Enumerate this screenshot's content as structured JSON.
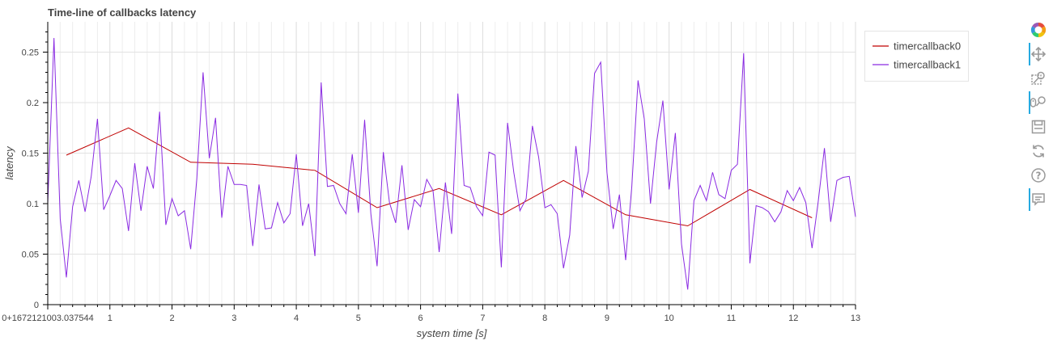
{
  "chart_data": {
    "type": "line",
    "title": "Time-line of callbacks latency",
    "xlabel": "system time [s]",
    "ylabel": "latency",
    "xlim": [
      0,
      13
    ],
    "ylim": [
      0,
      0.28
    ],
    "x_origin_label": "0+1672121003.037544",
    "x_ticks": [
      1,
      2,
      3,
      4,
      5,
      6,
      7,
      8,
      9,
      10,
      11,
      12,
      13
    ],
    "y_ticks": [
      0,
      0.05,
      0.1,
      0.15,
      0.2,
      0.25
    ],
    "y_tick_labels": [
      "0",
      "0.05",
      "0.1",
      "0.15",
      "0.2",
      "0.25"
    ],
    "grid": true,
    "legend_position": "top-right",
    "series": [
      {
        "name": "timercallback0",
        "color": "#c00000",
        "x": [
          0.3,
          1.3,
          2.3,
          3.3,
          4.3,
          5.3,
          6.3,
          7.3,
          8.3,
          9.3,
          10.3,
          11.3,
          12.3
        ],
        "y": [
          0.148,
          0.175,
          0.141,
          0.139,
          0.133,
          0.096,
          0.115,
          0.089,
          0.123,
          0.089,
          0.078,
          0.114,
          0.086
        ]
      },
      {
        "name": "timercallback1",
        "color": "#8a2be2",
        "x": [
          0.0,
          0.1,
          0.2,
          0.3,
          0.4,
          0.5,
          0.6,
          0.7,
          0.8,
          0.9,
          1.0,
          1.1,
          1.2,
          1.3,
          1.4,
          1.5,
          1.6,
          1.7,
          1.8,
          1.9,
          2.0,
          2.1,
          2.2,
          2.3,
          2.4,
          2.5,
          2.6,
          2.7,
          2.8,
          2.9,
          3.0,
          3.1,
          3.2,
          3.3,
          3.4,
          3.5,
          3.6,
          3.7,
          3.8,
          3.9,
          4.0,
          4.1,
          4.2,
          4.3,
          4.4,
          4.5,
          4.6,
          4.7,
          4.8,
          4.9,
          5.0,
          5.1,
          5.2,
          5.3,
          5.4,
          5.5,
          5.6,
          5.7,
          5.8,
          5.9,
          6.0,
          6.1,
          6.2,
          6.3,
          6.4,
          6.5,
          6.6,
          6.7,
          6.8,
          6.9,
          7.0,
          7.1,
          7.2,
          7.3,
          7.4,
          7.5,
          7.6,
          7.7,
          7.8,
          7.9,
          8.0,
          8.1,
          8.2,
          8.3,
          8.4,
          8.5,
          8.6,
          8.7,
          8.8,
          8.9,
          9.0,
          9.1,
          9.2,
          9.3,
          9.4,
          9.5,
          9.6,
          9.7,
          9.8,
          9.9,
          10.0,
          10.1,
          10.2,
          10.3,
          10.4,
          10.5,
          10.6,
          10.7,
          10.8,
          10.9,
          11.0,
          11.1,
          11.2,
          11.3,
          11.4,
          11.5,
          11.6,
          11.7,
          11.8,
          11.9,
          12.0,
          12.1,
          12.2,
          12.3,
          12.4,
          12.5,
          12.6,
          12.7,
          12.8,
          12.9,
          13.0
        ],
        "y": [
          0.1,
          0.264,
          0.085,
          0.027,
          0.097,
          0.123,
          0.092,
          0.127,
          0.184,
          0.094,
          0.108,
          0.123,
          0.115,
          0.073,
          0.14,
          0.093,
          0.137,
          0.115,
          0.191,
          0.079,
          0.105,
          0.088,
          0.093,
          0.055,
          0.125,
          0.23,
          0.145,
          0.185,
          0.086,
          0.137,
          0.119,
          0.119,
          0.118,
          0.058,
          0.119,
          0.075,
          0.076,
          0.101,
          0.081,
          0.09,
          0.149,
          0.078,
          0.1,
          0.048,
          0.22,
          0.117,
          0.118,
          0.1,
          0.09,
          0.149,
          0.091,
          0.183,
          0.09,
          0.038,
          0.151,
          0.101,
          0.081,
          0.138,
          0.074,
          0.104,
          0.097,
          0.124,
          0.113,
          0.052,
          0.121,
          0.07,
          0.209,
          0.118,
          0.116,
          0.097,
          0.088,
          0.151,
          0.148,
          0.037,
          0.18,
          0.131,
          0.093,
          0.105,
          0.177,
          0.146,
          0.096,
          0.099,
          0.09,
          0.036,
          0.069,
          0.157,
          0.106,
          0.132,
          0.229,
          0.24,
          0.131,
          0.075,
          0.109,
          0.044,
          0.117,
          0.222,
          0.184,
          0.1,
          0.161,
          0.202,
          0.114,
          0.17,
          0.06,
          0.015,
          0.103,
          0.118,
          0.103,
          0.131,
          0.109,
          0.105,
          0.133,
          0.139,
          0.249,
          0.041,
          0.098,
          0.096,
          0.092,
          0.082,
          0.092,
          0.113,
          0.103,
          0.116,
          0.101,
          0.056,
          0.102,
          0.155,
          0.082,
          0.123,
          0.126,
          0.127,
          0.087
        ]
      }
    ]
  },
  "toolbar": {
    "tools": [
      {
        "name": "bokeh-logo-icon",
        "interactable": true,
        "active": false
      },
      {
        "name": "pan-icon",
        "interactable": true,
        "active": true
      },
      {
        "name": "box-zoom-icon",
        "interactable": true,
        "active": false
      },
      {
        "name": "wheel-zoom-icon",
        "interactable": true,
        "active": true
      },
      {
        "name": "save-icon",
        "interactable": true,
        "active": false
      },
      {
        "name": "reset-icon",
        "interactable": true,
        "active": false
      },
      {
        "name": "help-icon",
        "interactable": true,
        "active": false
      },
      {
        "name": "hover-icon",
        "interactable": true,
        "active": true
      }
    ]
  }
}
